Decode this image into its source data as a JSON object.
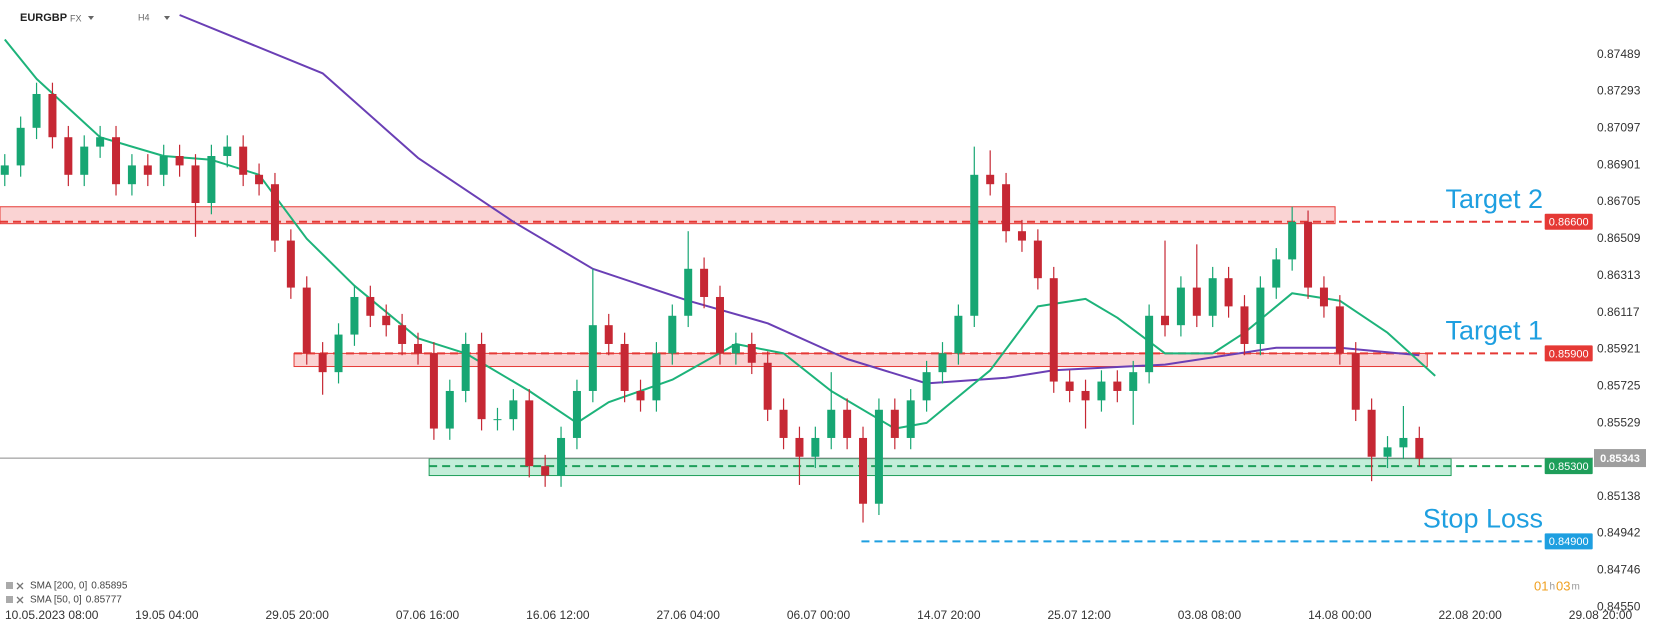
{
  "chart_data": {
    "type": "candlestick",
    "symbol": "EURGBP",
    "market": "FX",
    "timeframe": "H4",
    "xlim": [
      -0.3,
      103.2
    ],
    "ylim": [
      0.8454,
      0.8778
    ],
    "yticks": [
      0.87489,
      0.87293,
      0.87097,
      0.86901,
      0.86705,
      0.86509,
      0.86313,
      0.86117,
      0.85921,
      0.85725,
      0.85529,
      0.85138,
      0.84942,
      0.84746,
      {
        "value": 0.8455,
        "label": "0.84550"
      }
    ],
    "xticks": [
      {
        "value": 0,
        "label": "10.05.2023  08:00"
      },
      {
        "value": 10.2,
        "label": "19.05  04:00"
      },
      {
        "value": 18.4,
        "label": "29.05  20:00"
      },
      {
        "value": 26.6,
        "label": "07.06  16:00"
      },
      {
        "value": 34.8,
        "label": "16.06  12:00"
      },
      {
        "value": 43,
        "label": "27.06  04:00"
      },
      {
        "value": 51.2,
        "label": "06.07  00:00"
      },
      {
        "value": 59.4,
        "label": "14.07  20:00"
      },
      {
        "value": 67.6,
        "label": "25.07  12:00"
      },
      {
        "value": 75.8,
        "label": "03.08  08:00"
      },
      {
        "value": 84,
        "label": "14.08  00:00"
      },
      {
        "value": 92.2,
        "label": "22.08  20:00"
      },
      {
        "value": 100.4,
        "label": "29.08  20:00"
      }
    ],
    "candles": {
      "up_color": "#17a673",
      "down_color": "#c62834",
      "x": [
        0,
        1,
        2,
        3,
        4,
        5,
        6,
        7,
        8,
        9,
        10,
        11,
        12,
        13,
        14,
        15,
        16,
        17,
        18,
        19,
        20,
        21,
        22,
        23,
        24,
        25,
        26,
        27,
        28,
        29,
        30,
        31,
        32,
        33,
        34,
        35,
        36,
        37,
        38,
        39,
        40,
        41,
        42,
        43,
        44,
        45,
        46,
        47,
        48,
        49,
        50,
        51,
        52,
        53,
        54,
        55,
        56,
        57,
        58,
        59,
        60,
        61,
        62,
        63,
        64,
        65,
        66,
        67,
        68,
        69,
        70,
        71,
        72,
        73,
        74,
        75,
        76,
        77,
        78,
        79,
        80,
        81,
        82,
        83,
        84,
        85,
        86,
        87,
        88,
        89
      ],
      "open": [
        0.8685,
        0.869,
        0.871,
        0.8728,
        0.8705,
        0.8685,
        0.87,
        0.8705,
        0.868,
        0.869,
        0.8685,
        0.8695,
        0.869,
        0.867,
        0.8695,
        0.87,
        0.8685,
        0.868,
        0.865,
        0.8625,
        0.859,
        0.858,
        0.86,
        0.862,
        0.861,
        0.8605,
        0.8595,
        0.859,
        0.855,
        0.857,
        0.8595,
        0.8555,
        0.8555,
        0.8565,
        0.853,
        0.8525,
        0.8545,
        0.857,
        0.8605,
        0.8595,
        0.857,
        0.8565,
        0.859,
        0.861,
        0.8635,
        0.862,
        0.859,
        0.8595,
        0.8585,
        0.856,
        0.8545,
        0.8535,
        0.8545,
        0.856,
        0.8545,
        0.851,
        0.856,
        0.8545,
        0.8565,
        0.858,
        0.859,
        0.861,
        0.8685,
        0.868,
        0.8655,
        0.865,
        0.863,
        0.8575,
        0.857,
        0.8565,
        0.8575,
        0.857,
        0.858,
        0.861,
        0.8605,
        0.8625,
        0.861,
        0.863,
        0.8615,
        0.8595,
        0.8625,
        0.864,
        0.866,
        0.8625,
        0.8615,
        0.859,
        0.856,
        0.8535,
        0.854,
        0.8545
      ],
      "high": [
        0.8696,
        0.8716,
        0.8734,
        0.8734,
        0.8711,
        0.8706,
        0.8711,
        0.8711,
        0.8696,
        0.8696,
        0.8701,
        0.8701,
        0.8696,
        0.8701,
        0.8706,
        0.8706,
        0.8691,
        0.8686,
        0.8656,
        0.8631,
        0.8596,
        0.8606,
        0.8626,
        0.8626,
        0.8616,
        0.8611,
        0.8601,
        0.8596,
        0.8576,
        0.8601,
        0.8601,
        0.8561,
        0.8571,
        0.8571,
        0.8536,
        0.8551,
        0.8576,
        0.8635,
        0.8611,
        0.8601,
        0.8576,
        0.8596,
        0.8616,
        0.8655,
        0.8641,
        0.8626,
        0.8601,
        0.8601,
        0.8591,
        0.8566,
        0.8551,
        0.8551,
        0.858,
        0.8566,
        0.8551,
        0.8566,
        0.8566,
        0.8571,
        0.8586,
        0.8596,
        0.8616,
        0.87,
        0.8698,
        0.8686,
        0.8661,
        0.8656,
        0.8636,
        0.8581,
        0.8576,
        0.8581,
        0.8581,
        0.8586,
        0.8616,
        0.865,
        0.8631,
        0.8648,
        0.8636,
        0.8636,
        0.8621,
        0.8631,
        0.8646,
        0.8668,
        0.8666,
        0.8631,
        0.8621,
        0.8596,
        0.8566,
        0.8546,
        0.8562,
        0.8551
      ],
      "low": [
        0.8679,
        0.8684,
        0.8704,
        0.8699,
        0.8679,
        0.8679,
        0.8694,
        0.8674,
        0.8674,
        0.8679,
        0.8679,
        0.8684,
        0.8652,
        0.8664,
        0.8689,
        0.8679,
        0.8674,
        0.8644,
        0.8619,
        0.8584,
        0.8568,
        0.8574,
        0.8594,
        0.8604,
        0.8599,
        0.8589,
        0.8584,
        0.8544,
        0.8544,
        0.8564,
        0.8549,
        0.8549,
        0.8549,
        0.8524,
        0.8519,
        0.8519,
        0.8539,
        0.8564,
        0.8589,
        0.8564,
        0.8559,
        0.8559,
        0.8584,
        0.8604,
        0.8614,
        0.8584,
        0.8584,
        0.8579,
        0.8554,
        0.8539,
        0.852,
        0.8529,
        0.8539,
        0.8539,
        0.85,
        0.8504,
        0.8539,
        0.8539,
        0.8559,
        0.8574,
        0.8584,
        0.8604,
        0.8674,
        0.8649,
        0.8644,
        0.8624,
        0.8569,
        0.8564,
        0.855,
        0.8559,
        0.8564,
        0.8552,
        0.8574,
        0.8599,
        0.8599,
        0.8604,
        0.8604,
        0.8609,
        0.8589,
        0.8589,
        0.8619,
        0.8634,
        0.8619,
        0.8609,
        0.8584,
        0.8554,
        0.8522,
        0.8529,
        0.8534,
        0.853
      ],
      "close": [
        0.869,
        0.871,
        0.8728,
        0.8705,
        0.8685,
        0.87,
        0.8705,
        0.868,
        0.869,
        0.8685,
        0.8695,
        0.869,
        0.867,
        0.8695,
        0.87,
        0.8685,
        0.868,
        0.865,
        0.8625,
        0.859,
        0.858,
        0.86,
        0.862,
        0.861,
        0.8605,
        0.8595,
        0.859,
        0.855,
        0.857,
        0.8595,
        0.8555,
        0.8555,
        0.8565,
        0.853,
        0.8525,
        0.8545,
        0.857,
        0.8605,
        0.8595,
        0.857,
        0.8565,
        0.859,
        0.861,
        0.8635,
        0.862,
        0.859,
        0.8595,
        0.8585,
        0.856,
        0.8545,
        0.8535,
        0.8545,
        0.856,
        0.8545,
        0.851,
        0.856,
        0.8545,
        0.8565,
        0.858,
        0.859,
        0.861,
        0.8685,
        0.868,
        0.8655,
        0.865,
        0.863,
        0.8575,
        0.857,
        0.8565,
        0.8575,
        0.857,
        0.858,
        0.861,
        0.8605,
        0.8625,
        0.861,
        0.863,
        0.8615,
        0.8595,
        0.8625,
        0.864,
        0.866,
        0.8625,
        0.8615,
        0.859,
        0.856,
        0.8535,
        0.854,
        0.8545,
        0.8534
      ]
    },
    "series": [
      {
        "name": "SMA [200, 0]",
        "legend_value": 0.85895,
        "color": "#6a3fb5",
        "x": [
          11,
          20,
          26,
          32,
          37,
          43,
          48,
          53,
          58,
          63,
          66,
          73,
          80,
          84,
          89
        ],
        "values": [
          0.877,
          0.8739,
          0.8694,
          0.866,
          0.8635,
          0.8618,
          0.8606,
          0.8587,
          0.8574,
          0.8577,
          0.8581,
          0.8584,
          0.8593,
          0.8593,
          0.8589
        ]
      },
      {
        "name": "SMA [50, 0]",
        "legend_value": 0.85777,
        "color": "#1db37a",
        "x": [
          0,
          2,
          6,
          10,
          13,
          16,
          19,
          22,
          26,
          29,
          33,
          36,
          38,
          42,
          46,
          49,
          52,
          56,
          58,
          62,
          65,
          68,
          70,
          73,
          76,
          78,
          81,
          84,
          87,
          90
        ],
        "values": [
          0.8757,
          0.8736,
          0.8705,
          0.8695,
          0.8693,
          0.8685,
          0.8651,
          0.8626,
          0.8598,
          0.859,
          0.857,
          0.8553,
          0.8564,
          0.8576,
          0.8595,
          0.859,
          0.857,
          0.855,
          0.8553,
          0.8581,
          0.8615,
          0.8619,
          0.8609,
          0.859,
          0.859,
          0.8601,
          0.8622,
          0.8618,
          0.8601,
          0.8578
        ]
      }
    ],
    "levels": [
      {
        "name": "Target 2",
        "value": 0.866,
        "label": "0.86600",
        "color": "#e53935",
        "x_start": -0.3,
        "x_end": 96.7,
        "zone": [
          0.8659,
          0.8668
        ],
        "zone_x": [
          -0.3,
          83.7
        ]
      },
      {
        "name": "Target 1",
        "value": 0.859,
        "label": "0.85900",
        "color": "#e53935",
        "x_start": 18.2,
        "x_end": 96.7,
        "zone": [
          0.8583,
          0.859
        ],
        "zone_x": [
          18.2,
          89.5
        ]
      },
      {
        "value": 0.853,
        "label": "0.85300",
        "color": "#1e9e5a",
        "x_start": 26.7,
        "x_end": 96.7,
        "zone": [
          0.8525,
          0.8534
        ],
        "zone_x": [
          26.7,
          91
        ]
      },
      {
        "name": "Stop Loss",
        "value": 0.849,
        "label": "0.84900",
        "color": "#1e9fe0",
        "x_start": 53.9,
        "x_end": 96.7
      }
    ],
    "current_price": {
      "value": 0.85343,
      "label": "0.85343"
    },
    "timer": [
      "01",
      "h",
      "03",
      "m"
    ]
  }
}
